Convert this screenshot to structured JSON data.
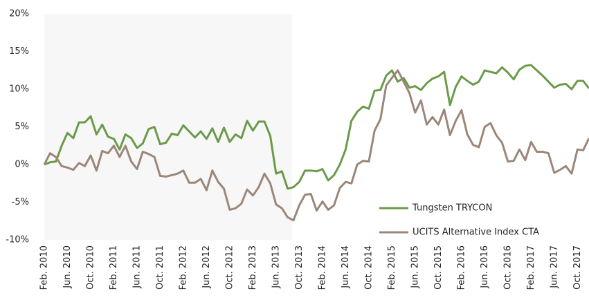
{
  "chart_data": {
    "type": "line",
    "categories": [
      "Feb. 2010",
      null,
      null,
      null,
      "Jun. 2010",
      null,
      null,
      null,
      "Oct. 2010",
      null,
      null,
      null,
      "Feb. 2011",
      null,
      null,
      null,
      "Jun. 2011",
      null,
      null,
      null,
      "Oct. 2011",
      null,
      null,
      null,
      "Feb. 2012",
      null,
      null,
      null,
      "Jun. 2012",
      null,
      null,
      null,
      "Oct. 2012",
      null,
      null,
      null,
      "Feb. 2013",
      null,
      null,
      null,
      "Jun. 2013",
      null,
      null,
      null,
      "Oct. 2013",
      null,
      null,
      null,
      "Feb. 2014",
      null,
      null,
      null,
      "Jun. 2014",
      null,
      null,
      null,
      "Oct. 2014",
      null,
      null,
      null,
      "Feb. 2015",
      null,
      null,
      null,
      "Jun. 2015",
      null,
      null,
      null,
      "Oct. 2015",
      null,
      null,
      null,
      "Feb. 2016",
      null,
      null,
      null,
      "Jun. 2016",
      null,
      null,
      null,
      "Oct. 2016",
      null,
      null,
      null,
      "Feb. 2017",
      null,
      null,
      null,
      "Jun. 2017",
      null,
      null,
      null,
      "Oct. 2017",
      null,
      null
    ],
    "series": [
      {
        "name": "Tungsten TRYCON",
        "color": "#6b9a4b",
        "values": [
          0,
          0.3,
          0.4,
          2.5,
          4.2,
          3.5,
          5.6,
          5.6,
          6.4,
          4.0,
          5.3,
          3.7,
          3.4,
          2.0,
          4.0,
          3.5,
          2.2,
          2.8,
          4.7,
          5.0,
          2.7,
          2.9,
          4.1,
          3.9,
          5.2,
          4.4,
          3.6,
          4.4,
          3.4,
          4.8,
          3.0,
          4.9,
          3.0,
          4.0,
          3.5,
          5.8,
          4.5,
          5.7,
          5.7,
          3.8,
          -1.2,
          -0.9,
          -3.2,
          -3.0,
          -2.3,
          -0.8,
          -0.8,
          -0.9,
          -0.6,
          -2.1,
          -1.4,
          0.0,
          2.0,
          5.8,
          7.0,
          7.7,
          7.4,
          9.8,
          9.9,
          11.8,
          12.5,
          11.0,
          11.5,
          10.2,
          10.4,
          9.9,
          10.8,
          11.4,
          11.7,
          12.3,
          7.9,
          10.3,
          11.7,
          11.1,
          10.6,
          11.0,
          12.5,
          12.3,
          12.1,
          12.9,
          12.2,
          11.3,
          12.6,
          13.1,
          13.2,
          12.5,
          11.8,
          11.0,
          10.2,
          10.6,
          10.7,
          10.0,
          11.1,
          11.1,
          10.1
        ]
      },
      {
        "name": "UCITS Alternative Index CTA",
        "color": "#9c8679",
        "values": [
          0,
          1.5,
          1.0,
          -0.2,
          -0.4,
          -0.7,
          0.2,
          -0.2,
          1.2,
          -0.8,
          1.8,
          1.5,
          2.5,
          1.0,
          2.5,
          0.4,
          -0.6,
          1.7,
          1.4,
          1.0,
          -1.5,
          -1.6,
          -1.4,
          -1.2,
          -0.8,
          -2.4,
          -2.4,
          -1.9,
          -3.4,
          -0.8,
          -2.3,
          -3.2,
          -6.0,
          -5.8,
          -5.2,
          -3.3,
          -4.1,
          -3.0,
          -1.2,
          -2.5,
          -5.3,
          -5.8,
          -7.0,
          -7.4,
          -5.4,
          -4.0,
          -3.9,
          -6.1,
          -4.9,
          -6.0,
          -5.4,
          -3.1,
          -2.3,
          -2.5,
          0.0,
          0.5,
          0.4,
          4.5,
          6.0,
          10.5,
          11.5,
          12.5,
          11.0,
          9.5,
          6.9,
          8.5,
          5.3,
          6.3,
          5.3,
          7.3,
          3.9,
          5.8,
          7.2,
          4.0,
          2.6,
          2.3,
          5.0,
          5.5,
          3.9,
          2.9,
          0.4,
          0.5,
          2.0,
          0.6,
          3.0,
          1.7,
          1.7,
          1.5,
          -1.1,
          -0.7,
          -0.2,
          -1.2,
          2.0,
          1.9,
          3.5
        ]
      }
    ],
    "ylim": [
      -10,
      20
    ],
    "yticks": [
      {
        "value": -10,
        "label": "-10%"
      },
      {
        "value": -5,
        "label": "-5%"
      },
      {
        "value": 0,
        "label": "0%"
      },
      {
        "value": 5,
        "label": "5%"
      },
      {
        "value": 10,
        "label": "10%"
      },
      {
        "value": 15,
        "label": "15%"
      },
      {
        "value": 20,
        "label": "20%"
      }
    ],
    "legend": "lower-right"
  }
}
